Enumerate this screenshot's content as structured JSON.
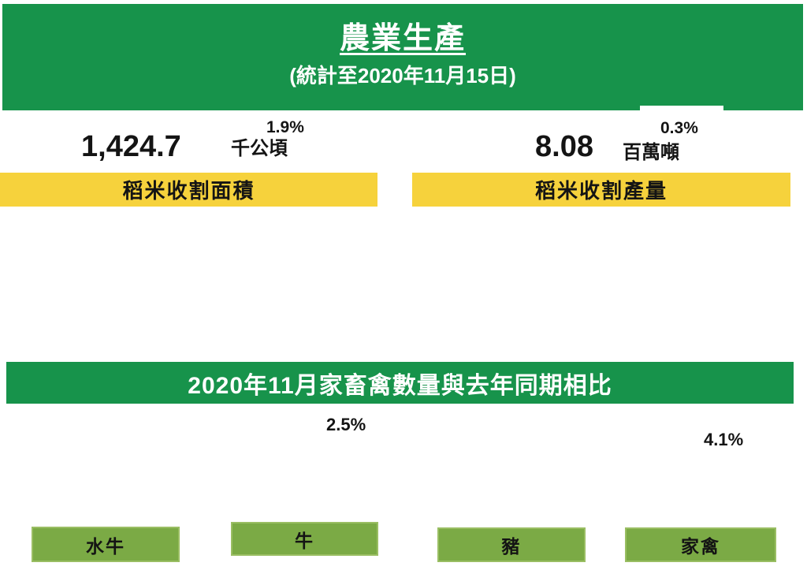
{
  "colors": {
    "banner_green": "#17934B",
    "bar_yellow": "#F6D23C",
    "button_green": "#7BAA45",
    "button_border": "#9ABE63",
    "text_black": "#141414",
    "text_white": "#FFFFFF"
  },
  "header": {
    "title": "農業生產",
    "subtitle": "(統計至2020年11月15日)"
  },
  "rice_stats": [
    {
      "value": "1,424.7",
      "change_percent": "1.9%",
      "unit": "千公頃",
      "label": "稻米收割面積"
    },
    {
      "value": "8.08",
      "change_percent": "0.3%",
      "unit": "百萬噸",
      "label": "稻米收割產量"
    }
  ],
  "livestock": {
    "banner_title": "2020年11月家畜禽數量與去年同期相比",
    "percent_labels": [
      "2.5%",
      "4.1%"
    ],
    "category_buttons": [
      "水牛",
      "牛",
      "豬",
      "家禽"
    ]
  }
}
